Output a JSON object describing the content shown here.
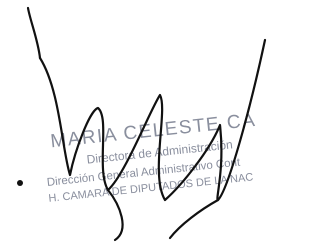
{
  "stamp": {
    "name": "MARIA CELESTE CA",
    "role": "Directora de Administración",
    "office": "Dirección General Administrativo Cont",
    "institution": "H. CAMARA DE DIPUTADOS DE LA NAC"
  }
}
